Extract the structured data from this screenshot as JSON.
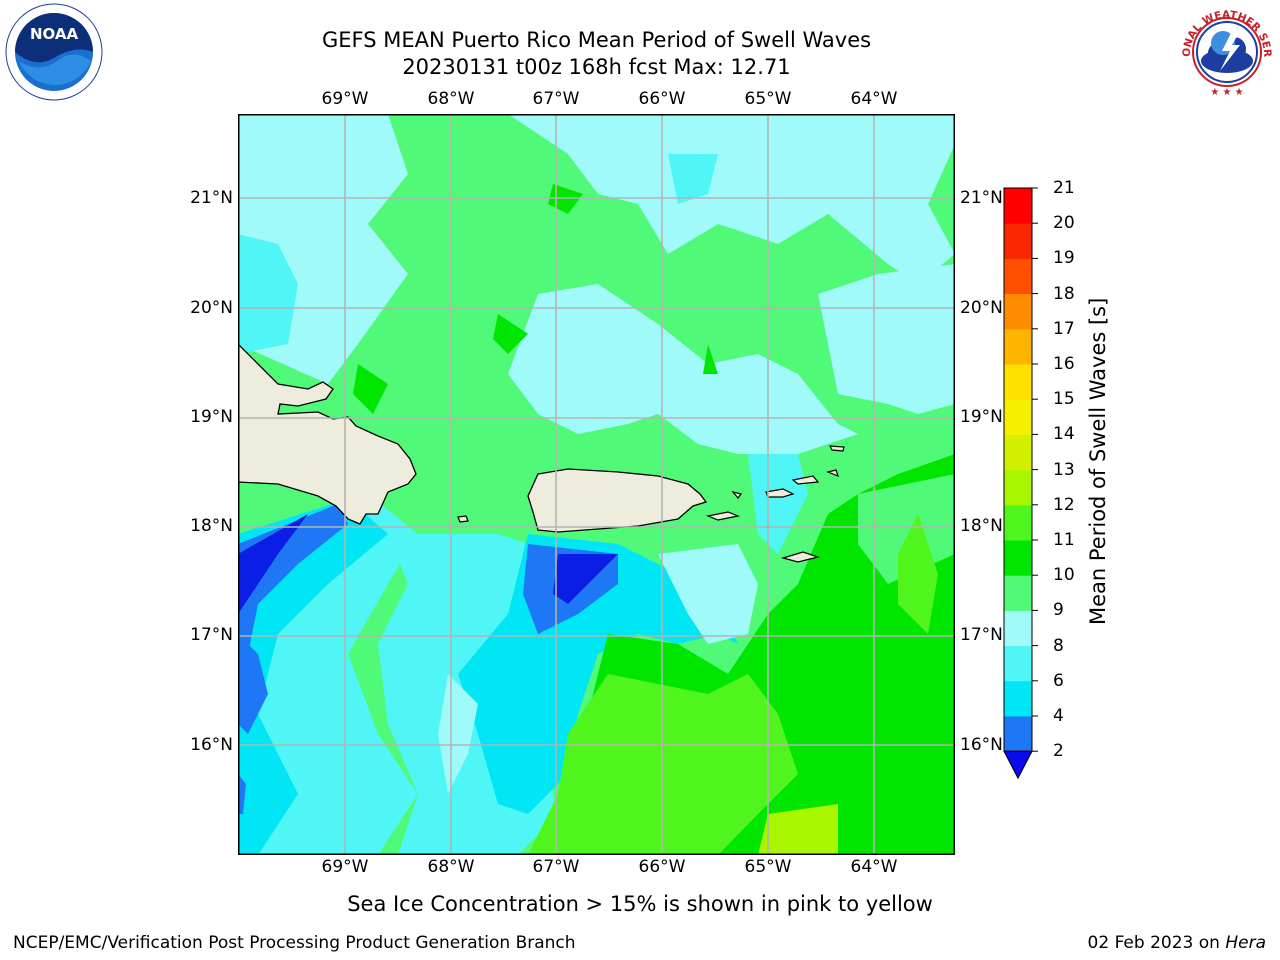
{
  "header": {
    "title_line1": "GEFS MEAN Puerto Rico Mean Period of Swell Waves",
    "title_line2": "20230131 t00z 168h fcst   Max: 12.71"
  },
  "logos": {
    "left": {
      "text": "NOAA",
      "ring_text": "NATIONAL OCEANIC AND ATMOSPHERIC ADMINISTRATION · U.S. DEPARTMENT OF COMMERCE"
    },
    "right": {
      "ring_text": "NATIONAL WEATHER SERVICE"
    }
  },
  "map": {
    "lon_ticks": [
      "69°W",
      "68°W",
      "67°W",
      "66°W",
      "65°W",
      "64°W"
    ],
    "lat_ticks": [
      "21°N",
      "20°N",
      "19°N",
      "18°N",
      "17°N",
      "16°N"
    ],
    "colors": {
      "land": "#eeecdc",
      "grid": "#b4b4b4"
    }
  },
  "colorbar": {
    "label": "Mean Period of Swell Waves [s]",
    "levels": [
      "2",
      "4",
      "6",
      "8",
      "9",
      "10",
      "11",
      "12",
      "13",
      "14",
      "15",
      "16",
      "17",
      "18",
      "19",
      "20",
      "21"
    ],
    "colors": [
      "#0a1ee6",
      "#1e78f5",
      "#00e6f5",
      "#50f5f5",
      "#a0fafa",
      "#50fa78",
      "#00e600",
      "#50f51e",
      "#aaf500",
      "#d2f000",
      "#f5f000",
      "#ffe100",
      "#ffb400",
      "#ff8c00",
      "#ff5000",
      "#fa2800",
      "#ff0000"
    ],
    "extend_color": "#0a0aeb"
  },
  "note": "Sea Ice Concentration > 15% is shown in pink to yellow",
  "footer": {
    "left": "NCEP/EMC/Verification Post Processing Product Generation Branch",
    "right_prefix": "02 Feb 2023 on ",
    "right_italic": "Hera"
  }
}
